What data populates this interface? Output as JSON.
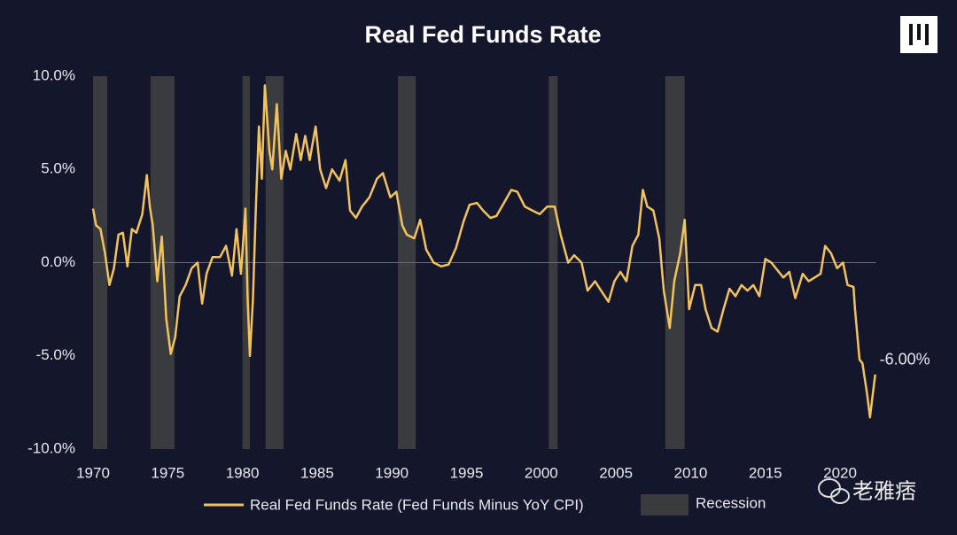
{
  "chart_data": {
    "type": "line",
    "title": "Real Fed Funds Rate",
    "series": [
      {
        "name": "Real Fed Funds Rate (Fed Funds Minus YoY CPI)",
        "color": "#f2c35c",
        "x": [
          1970.0,
          1970.2,
          1970.5,
          1970.8,
          1971.1,
          1971.4,
          1971.7,
          1972.0,
          1972.3,
          1972.6,
          1972.9,
          1973.3,
          1973.6,
          1973.8,
          1974.0,
          1974.3,
          1974.6,
          1974.9,
          1975.2,
          1975.5,
          1975.8,
          1976.2,
          1976.6,
          1977.0,
          1977.3,
          1977.6,
          1978.0,
          1978.5,
          1978.9,
          1979.3,
          1979.6,
          1979.9,
          1980.2,
          1980.35,
          1980.5,
          1980.7,
          1980.9,
          1981.1,
          1981.3,
          1981.5,
          1981.8,
          1982.0,
          1982.3,
          1982.6,
          1982.9,
          1983.2,
          1983.6,
          1983.9,
          1984.2,
          1984.5,
          1984.9,
          1985.2,
          1985.6,
          1986.0,
          1986.5,
          1986.9,
          1987.2,
          1987.6,
          1988.0,
          1988.5,
          1989.0,
          1989.4,
          1989.9,
          1990.3,
          1990.7,
          1991.0,
          1991.5,
          1991.9,
          1992.3,
          1992.8,
          1993.3,
          1993.8,
          1994.3,
          1994.8,
          1995.2,
          1995.7,
          1996.1,
          1996.6,
          1997.0,
          1997.5,
          1998.0,
          1998.4,
          1998.9,
          1999.4,
          1999.9,
          2000.4,
          2000.9,
          2001.3,
          2001.8,
          2002.2,
          2002.7,
          2003.1,
          2003.6,
          2004.0,
          2004.5,
          2004.9,
          2005.3,
          2005.7,
          2006.1,
          2006.5,
          2006.8,
          2007.1,
          2007.5,
          2007.9,
          2008.2,
          2008.6,
          2008.9,
          2009.3,
          2009.6,
          2009.9,
          2010.3,
          2010.7,
          2011.0,
          2011.4,
          2011.8,
          2012.2,
          2012.6,
          2013.0,
          2013.4,
          2013.8,
          2014.2,
          2014.6,
          2015.0,
          2015.4,
          2015.8,
          2016.2,
          2016.6,
          2017.0,
          2017.5,
          2017.9,
          2018.3,
          2018.7,
          2019.0,
          2019.4,
          2019.8,
          2020.2,
          2020.5,
          2020.9,
          2021.0,
          2021.3,
          2021.5,
          2021.8,
          2022.0,
          2022.2,
          2022.35
        ],
        "values": [
          2.9,
          2.0,
          1.8,
          0.5,
          -1.2,
          -0.3,
          1.5,
          1.6,
          -0.2,
          1.8,
          1.6,
          2.6,
          4.7,
          3.0,
          2.0,
          -1.0,
          1.4,
          -3.0,
          -4.9,
          -4.0,
          -1.8,
          -1.2,
          -0.3,
          0.0,
          -2.2,
          -0.6,
          0.3,
          0.3,
          0.9,
          -0.7,
          1.8,
          -0.6,
          2.9,
          -2.0,
          -5.0,
          -2.0,
          3.0,
          7.3,
          4.5,
          9.5,
          6.0,
          5.0,
          8.5,
          4.5,
          6.0,
          5.0,
          6.9,
          5.5,
          6.8,
          5.5,
          7.3,
          5.0,
          4.0,
          5.0,
          4.4,
          5.5,
          2.8,
          2.4,
          3.0,
          3.5,
          4.5,
          4.8,
          3.5,
          3.8,
          2.0,
          1.5,
          1.3,
          2.3,
          0.7,
          0.0,
          -0.2,
          -0.1,
          0.8,
          2.2,
          3.1,
          3.2,
          2.8,
          2.4,
          2.5,
          3.2,
          3.9,
          3.8,
          3.0,
          2.8,
          2.6,
          3.0,
          3.0,
          1.5,
          0.0,
          0.4,
          0.0,
          -1.5,
          -1.0,
          -1.5,
          -2.1,
          -1.0,
          -0.5,
          -1.0,
          0.9,
          1.5,
          3.9,
          3.0,
          2.8,
          1.3,
          -1.5,
          -3.5,
          -1.0,
          0.5,
          2.3,
          -2.5,
          -1.2,
          -1.2,
          -2.5,
          -3.5,
          -3.7,
          -2.5,
          -1.4,
          -1.8,
          -1.2,
          -1.5,
          -1.2,
          -1.8,
          0.2,
          0.0,
          -0.4,
          -0.8,
          -0.5,
          -1.9,
          -0.6,
          -1.0,
          -0.8,
          -0.6,
          0.9,
          0.5,
          -0.3,
          0.0,
          -1.2,
          -1.3,
          -2.5,
          -5.2,
          -5.4,
          -7.0,
          -8.3,
          -7.0,
          -6.0
        ]
      }
    ],
    "recession_name": "Recession",
    "recessions": [
      [
        1970.0,
        1970.95
      ],
      [
        1973.85,
        1975.45
      ],
      [
        1980.0,
        1980.5
      ],
      [
        1981.55,
        1982.75
      ],
      [
        1990.4,
        1991.6
      ],
      [
        2000.5,
        2001.1
      ],
      [
        2008.3,
        2009.6
      ]
    ],
    "recession_color": "#3a3b3f",
    "end_label": {
      "value": -6.0,
      "label": "-6.00%"
    },
    "xlim": [
      1970,
      2022.4
    ],
    "xticks": [
      1970,
      1975,
      1980,
      1985,
      1990,
      1995,
      2000,
      2005,
      2010,
      2015,
      2020
    ],
    "ylim": [
      -10,
      10
    ],
    "yticks": [
      {
        "value": -10,
        "label": "-10.0%"
      },
      {
        "value": -5,
        "label": "-5.0%"
      },
      {
        "value": 0,
        "label": "0.0%"
      },
      {
        "value": 5,
        "label": "5.0%"
      },
      {
        "value": 10,
        "label": "10.0%"
      }
    ],
    "zero_line": true,
    "watermark": "老雅痞"
  }
}
